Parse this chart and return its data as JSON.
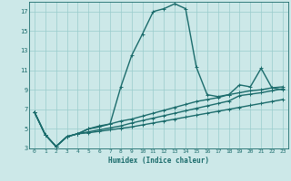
{
  "xlabel": "Humidex (Indice chaleur)",
  "bg_color": "#cce8e8",
  "grid_color": "#99cccc",
  "line_color": "#1a6b6b",
  "xlim": [
    -0.5,
    23.5
  ],
  "ylim": [
    3,
    18
  ],
  "yticks": [
    3,
    5,
    7,
    9,
    11,
    13,
    15,
    17
  ],
  "xticks": [
    0,
    1,
    2,
    3,
    4,
    5,
    6,
    7,
    8,
    9,
    10,
    11,
    12,
    13,
    14,
    15,
    16,
    17,
    18,
    19,
    20,
    21,
    22,
    23
  ],
  "series": [
    [
      6.7,
      4.4,
      3.2,
      4.2,
      4.5,
      5.0,
      5.3,
      5.5,
      9.3,
      12.5,
      14.7,
      17.0,
      17.3,
      17.8,
      17.3,
      11.3,
      8.5,
      8.3,
      8.5,
      9.5,
      9.3,
      11.2,
      9.2,
      9.0
    ],
    [
      6.7,
      4.4,
      3.2,
      4.2,
      4.5,
      4.6,
      4.75,
      4.9,
      5.05,
      5.2,
      5.4,
      5.6,
      5.8,
      6.0,
      6.2,
      6.4,
      6.6,
      6.8,
      7.0,
      7.2,
      7.4,
      7.6,
      7.8,
      8.0
    ],
    [
      6.7,
      4.4,
      3.2,
      4.2,
      4.5,
      4.7,
      4.9,
      5.1,
      5.3,
      5.6,
      5.85,
      6.1,
      6.35,
      6.6,
      6.85,
      7.1,
      7.35,
      7.6,
      7.85,
      8.4,
      8.55,
      8.7,
      8.9,
      9.1
    ],
    [
      6.7,
      4.4,
      3.2,
      4.2,
      4.5,
      5.0,
      5.2,
      5.5,
      5.8,
      6.0,
      6.3,
      6.6,
      6.9,
      7.2,
      7.5,
      7.8,
      8.0,
      8.2,
      8.5,
      8.7,
      8.9,
      9.0,
      9.2,
      9.3
    ]
  ]
}
